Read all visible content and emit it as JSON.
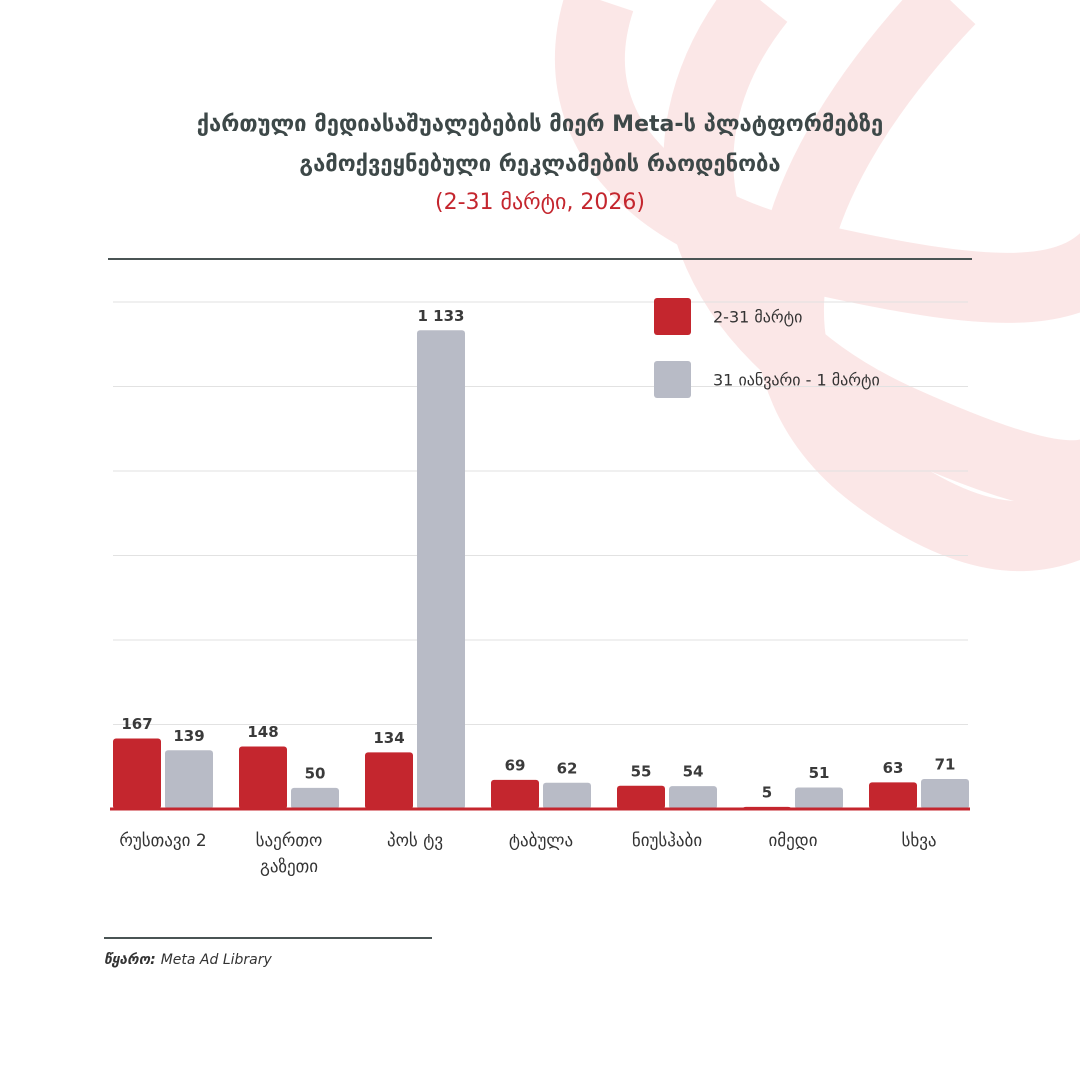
{
  "chart_data": {
    "type": "bar",
    "title": [
      "ქართული მედიასაშუალებების მიერ Meta-ს პლატფორმებზე",
      "გამოქვეყნებული რეკლამების რაოდენობა"
    ],
    "subtitle": "(2-31 მარტი, 2026)",
    "categories": [
      "რუსთავი 2",
      "საერთო გაზეთი",
      "პოს ტვ",
      "ტაბულა",
      "ნიუსჰაბი",
      "იმედი",
      "სხვა"
    ],
    "series": [
      {
        "name": "2-31 მარტი",
        "color": "#c4262e",
        "values": [
          167,
          148,
          134,
          69,
          55,
          5,
          63
        ]
      },
      {
        "name": "31 იანვარი - 1 მარტი",
        "color": "#b8bbc6",
        "values": [
          139,
          50,
          1133,
          62,
          54,
          51,
          71
        ],
        "value_labels": [
          "139",
          "50",
          "1 133",
          "62",
          "54",
          "51",
          "71"
        ]
      }
    ],
    "ylim": [
      0,
      1200
    ],
    "yticks": [
      0,
      200,
      400,
      600,
      800,
      1000,
      1200
    ],
    "grid": true,
    "legend": "top-right",
    "source_label": "წყარო:",
    "source": "Meta Ad Library"
  }
}
